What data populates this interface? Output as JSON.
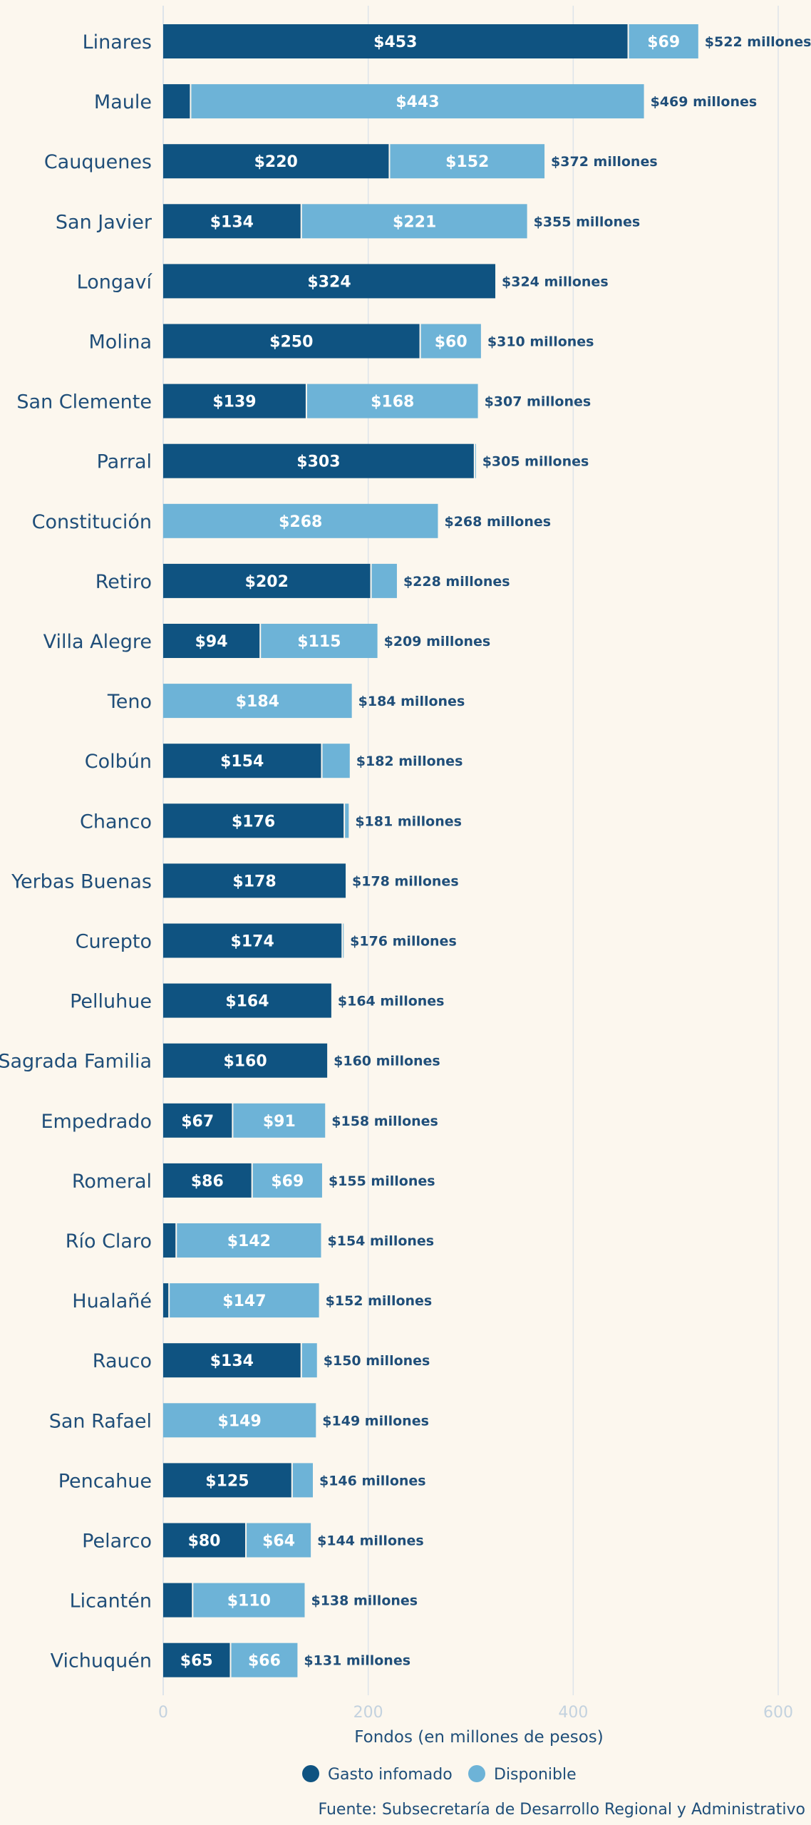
{
  "chart_data": {
    "type": "bar",
    "orientation": "horizontal",
    "stacked": true,
    "categories": [
      "Linares",
      "Maule",
      "Cauquenes",
      "San Javier",
      "Longaví",
      "Molina",
      "San Clemente",
      "Parral",
      "Constitución",
      "Retiro",
      "Villa Alegre",
      "Teno",
      "Colbún",
      "Chanco",
      "Yerbas Buenas",
      "Curepto",
      "Pelluhue",
      "Sagrada Familia",
      "Empedrado",
      "Romeral",
      "Río Claro",
      "Hualañé",
      "Rauco",
      "San Rafael",
      "Pencahue",
      "Pelarco",
      "Licantén",
      "Vichuquén"
    ],
    "series": [
      {
        "name": "Gasto infomado",
        "color": "#0f5381",
        "values": [
          453,
          26,
          220,
          134,
          324,
          250,
          139,
          303,
          0,
          202,
          94,
          0,
          154,
          176,
          178,
          174,
          164,
          160,
          67,
          86,
          12,
          5,
          134,
          0,
          125,
          80,
          28,
          65
        ],
        "labels": [
          "$453",
          "",
          "$220",
          "$134",
          "$324",
          "$250",
          "$139",
          "$303",
          "",
          "$202",
          "$94",
          "",
          "$154",
          "$176",
          "$178",
          "$174",
          "$164",
          "$160",
          "$67",
          "$86",
          "",
          "",
          "$134",
          "",
          "$125",
          "$80",
          "",
          "$65"
        ]
      },
      {
        "name": "Disponible",
        "color": "#6db3d7",
        "values": [
          69,
          443,
          152,
          221,
          0,
          60,
          168,
          2,
          268,
          26,
          115,
          184,
          28,
          5,
          0,
          2,
          0,
          0,
          91,
          69,
          142,
          147,
          16,
          149,
          21,
          64,
          110,
          66
        ],
        "labels": [
          "$69",
          "$443",
          "$152",
          "$221",
          "",
          "$60",
          "$168",
          "",
          "$268",
          "",
          "$115",
          "$184",
          "",
          "",
          "",
          "",
          "",
          "",
          "$91",
          "$69",
          "$142",
          "$147",
          "",
          "$149",
          "",
          "$64",
          "$110",
          "$66"
        ]
      }
    ],
    "totals": [
      522,
      469,
      372,
      355,
      324,
      310,
      307,
      305,
      268,
      228,
      209,
      184,
      182,
      181,
      178,
      176,
      164,
      160,
      158,
      155,
      154,
      152,
      150,
      149,
      146,
      144,
      138,
      131
    ],
    "total_labels": [
      "$522 millones",
      "$469 millones",
      "$372 millones",
      "$355 millones",
      "$324 millones",
      "$310 millones",
      "$307 millones",
      "$305 millones",
      "$268 millones",
      "$228 millones",
      "$209 millones",
      "$184 millones",
      "$182 millones",
      "$181 millones",
      "$178 millones",
      "$176 millones",
      "$164 millones",
      "$160 millones",
      "$158 millones",
      "$155 millones",
      "$154 millones",
      "$152 millones",
      "$150 millones",
      "$149 millones",
      "$146 millones",
      "$144 millones",
      "$138 millones",
      "$131 millones"
    ],
    "xlim": [
      0,
      600
    ],
    "xticks": [
      0,
      200,
      400,
      600
    ],
    "xlabel": "Fondos (en millones de pesos)",
    "grid": true,
    "legend_position": "bottom-center",
    "source": "Fuente: Subsecretaría de Desarrollo Regional y Administrativo",
    "colors": {
      "background": "#fcf7ee",
      "text": "#1f4e79",
      "grid": "#dde4ea",
      "tick": "#c3d2df"
    }
  }
}
